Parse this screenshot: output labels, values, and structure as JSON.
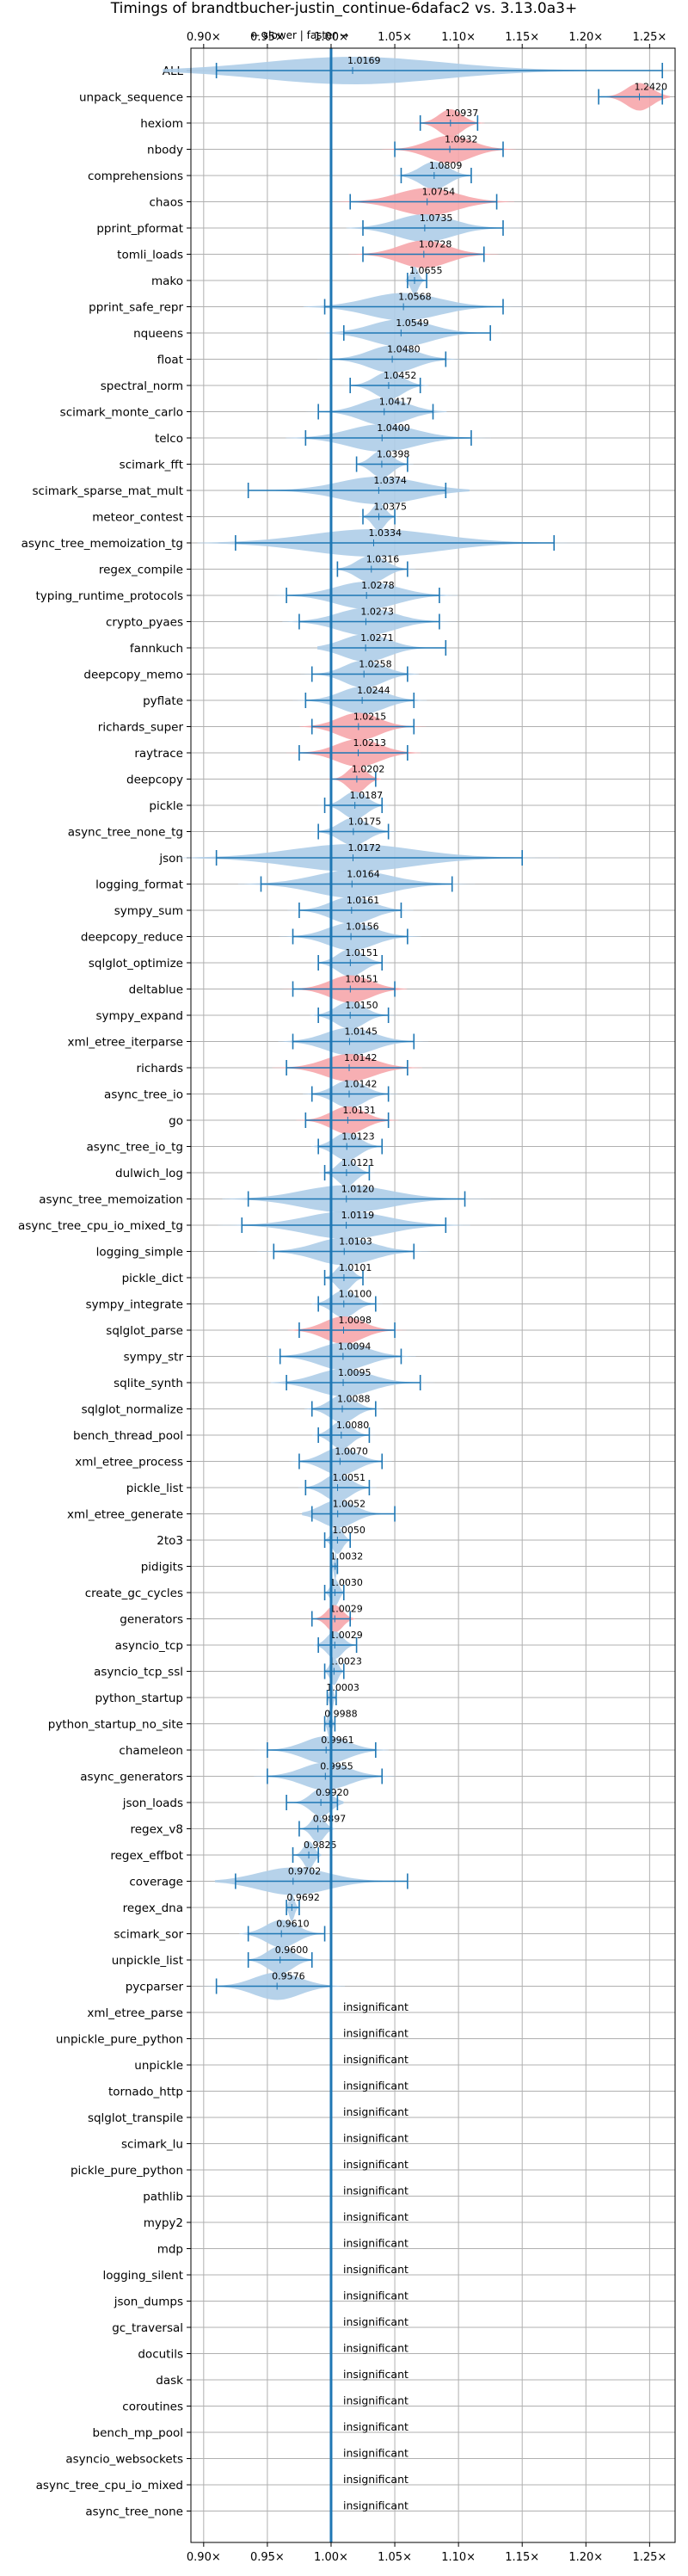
{
  "chart_data": {
    "type": "violin",
    "title": "Timings of brandtbucher-justin_continue-6dafac2 vs. 3.13.0a3+",
    "direction_hint": "← slower | faster →",
    "x_ticks": [
      "0.90×",
      "0.95×",
      "1.00×",
      "1.05×",
      "1.10×",
      "1.15×",
      "1.20×",
      "1.25×"
    ],
    "x_tick_values": [
      0.9,
      0.95,
      1.0,
      1.05,
      1.1,
      1.15,
      1.2,
      1.25
    ],
    "xlim": [
      0.89,
      1.27
    ],
    "reference": 1.0,
    "grid": true,
    "insignificant_label": "insignificant",
    "colors": {
      "faster": "#aecde8",
      "slower": "#f6a6ab",
      "line": "#1f77b4",
      "grid": "#b0b0b0"
    },
    "benchmarks": [
      {
        "name": "ALL",
        "value": 1.0169,
        "min": 0.91,
        "max": 1.26,
        "color": "blue",
        "sig": true
      },
      {
        "name": "unpack_sequence",
        "value": 1.242,
        "min": 1.21,
        "max": 1.26,
        "color": "red",
        "sig": true
      },
      {
        "name": "hexiom",
        "value": 1.0937,
        "min": 1.07,
        "max": 1.115,
        "color": "red",
        "sig": true
      },
      {
        "name": "nbody",
        "value": 1.0932,
        "min": 1.05,
        "max": 1.135,
        "color": "red",
        "sig": true
      },
      {
        "name": "comprehensions",
        "value": 1.0809,
        "min": 1.055,
        "max": 1.11,
        "color": "blue",
        "sig": true
      },
      {
        "name": "chaos",
        "value": 1.0754,
        "min": 1.015,
        "max": 1.13,
        "color": "red",
        "sig": true
      },
      {
        "name": "pprint_pformat",
        "value": 1.0735,
        "min": 1.025,
        "max": 1.135,
        "color": "blue",
        "sig": true
      },
      {
        "name": "tomli_loads",
        "value": 1.0728,
        "min": 1.025,
        "max": 1.12,
        "color": "red",
        "sig": true
      },
      {
        "name": "mako",
        "value": 1.0655,
        "min": 1.06,
        "max": 1.075,
        "color": "blue",
        "sig": true
      },
      {
        "name": "pprint_safe_repr",
        "value": 1.0568,
        "min": 0.995,
        "max": 1.135,
        "color": "blue",
        "sig": true
      },
      {
        "name": "nqueens",
        "value": 1.0549,
        "min": 1.01,
        "max": 1.125,
        "color": "blue",
        "sig": true
      },
      {
        "name": "float",
        "value": 1.048,
        "min": 1.0,
        "max": 1.09,
        "color": "blue",
        "sig": true
      },
      {
        "name": "spectral_norm",
        "value": 1.0452,
        "min": 1.015,
        "max": 1.07,
        "color": "blue",
        "sig": true
      },
      {
        "name": "scimark_monte_carlo",
        "value": 1.0417,
        "min": 0.99,
        "max": 1.08,
        "color": "blue",
        "sig": true
      },
      {
        "name": "telco",
        "value": 1.04,
        "min": 0.98,
        "max": 1.11,
        "color": "blue",
        "sig": true
      },
      {
        "name": "scimark_fft",
        "value": 1.0398,
        "min": 1.02,
        "max": 1.06,
        "color": "blue",
        "sig": true
      },
      {
        "name": "scimark_sparse_mat_mult",
        "value": 1.0374,
        "min": 0.935,
        "max": 1.09,
        "color": "blue",
        "sig": true
      },
      {
        "name": "meteor_contest",
        "value": 1.0375,
        "min": 1.025,
        "max": 1.05,
        "color": "blue",
        "sig": true
      },
      {
        "name": "async_tree_memoization_tg",
        "value": 1.0334,
        "min": 0.925,
        "max": 1.175,
        "color": "blue",
        "sig": true
      },
      {
        "name": "regex_compile",
        "value": 1.0316,
        "min": 1.005,
        "max": 1.06,
        "color": "blue",
        "sig": true
      },
      {
        "name": "typing_runtime_protocols",
        "value": 1.0278,
        "min": 0.965,
        "max": 1.085,
        "color": "blue",
        "sig": true
      },
      {
        "name": "crypto_pyaes",
        "value": 1.0273,
        "min": 0.975,
        "max": 1.085,
        "color": "blue",
        "sig": true
      },
      {
        "name": "fannkuch",
        "value": 1.0271,
        "min": 1.0,
        "max": 1.09,
        "color": "blue",
        "sig": true
      },
      {
        "name": "deepcopy_memo",
        "value": 1.0258,
        "min": 0.985,
        "max": 1.06,
        "color": "blue",
        "sig": true
      },
      {
        "name": "pyflate",
        "value": 1.0244,
        "min": 0.98,
        "max": 1.065,
        "color": "blue",
        "sig": true
      },
      {
        "name": "richards_super",
        "value": 1.0215,
        "min": 0.985,
        "max": 1.065,
        "color": "red",
        "sig": true
      },
      {
        "name": "raytrace",
        "value": 1.0213,
        "min": 0.975,
        "max": 1.06,
        "color": "red",
        "sig": true
      },
      {
        "name": "deepcopy",
        "value": 1.0202,
        "min": 1.0,
        "max": 1.035,
        "color": "red",
        "sig": true
      },
      {
        "name": "pickle",
        "value": 1.0187,
        "min": 0.995,
        "max": 1.04,
        "color": "blue",
        "sig": true
      },
      {
        "name": "async_tree_none_tg",
        "value": 1.0175,
        "min": 0.99,
        "max": 1.045,
        "color": "blue",
        "sig": true
      },
      {
        "name": "json",
        "value": 1.0172,
        "min": 0.91,
        "max": 1.15,
        "color": "blue",
        "sig": true
      },
      {
        "name": "logging_format",
        "value": 1.0164,
        "min": 0.945,
        "max": 1.095,
        "color": "blue",
        "sig": true
      },
      {
        "name": "sympy_sum",
        "value": 1.0161,
        "min": 0.975,
        "max": 1.055,
        "color": "blue",
        "sig": true
      },
      {
        "name": "deepcopy_reduce",
        "value": 1.0156,
        "min": 0.97,
        "max": 1.06,
        "color": "blue",
        "sig": true
      },
      {
        "name": "sqlglot_optimize",
        "value": 1.0151,
        "min": 0.99,
        "max": 1.04,
        "color": "blue",
        "sig": true
      },
      {
        "name": "deltablue",
        "value": 1.0151,
        "min": 0.97,
        "max": 1.05,
        "color": "red",
        "sig": true
      },
      {
        "name": "sympy_expand",
        "value": 1.015,
        "min": 0.99,
        "max": 1.045,
        "color": "blue",
        "sig": true
      },
      {
        "name": "xml_etree_iterparse",
        "value": 1.0145,
        "min": 0.97,
        "max": 1.065,
        "color": "blue",
        "sig": true
      },
      {
        "name": "richards",
        "value": 1.0142,
        "min": 0.965,
        "max": 1.06,
        "color": "red",
        "sig": true
      },
      {
        "name": "async_tree_io",
        "value": 1.0142,
        "min": 0.985,
        "max": 1.045,
        "color": "blue",
        "sig": true
      },
      {
        "name": "go",
        "value": 1.0131,
        "min": 0.98,
        "max": 1.045,
        "color": "red",
        "sig": true
      },
      {
        "name": "async_tree_io_tg",
        "value": 1.0123,
        "min": 0.99,
        "max": 1.04,
        "color": "blue",
        "sig": true
      },
      {
        "name": "dulwich_log",
        "value": 1.0121,
        "min": 0.995,
        "max": 1.03,
        "color": "blue",
        "sig": true
      },
      {
        "name": "async_tree_memoization",
        "value": 1.012,
        "min": 0.935,
        "max": 1.105,
        "color": "blue",
        "sig": true
      },
      {
        "name": "async_tree_cpu_io_mixed_tg",
        "value": 1.0119,
        "min": 0.93,
        "max": 1.09,
        "color": "blue",
        "sig": true
      },
      {
        "name": "logging_simple",
        "value": 1.0103,
        "min": 0.955,
        "max": 1.065,
        "color": "blue",
        "sig": true
      },
      {
        "name": "pickle_dict",
        "value": 1.0101,
        "min": 0.995,
        "max": 1.025,
        "color": "blue",
        "sig": true
      },
      {
        "name": "sympy_integrate",
        "value": 1.01,
        "min": 0.99,
        "max": 1.035,
        "color": "blue",
        "sig": true
      },
      {
        "name": "sqlglot_parse",
        "value": 1.0098,
        "min": 0.975,
        "max": 1.05,
        "color": "red",
        "sig": true
      },
      {
        "name": "sympy_str",
        "value": 1.0094,
        "min": 0.96,
        "max": 1.055,
        "color": "blue",
        "sig": true
      },
      {
        "name": "sqlite_synth",
        "value": 1.0095,
        "min": 0.965,
        "max": 1.07,
        "color": "blue",
        "sig": true
      },
      {
        "name": "sqlglot_normalize",
        "value": 1.0088,
        "min": 0.985,
        "max": 1.035,
        "color": "blue",
        "sig": true
      },
      {
        "name": "bench_thread_pool",
        "value": 1.008,
        "min": 0.99,
        "max": 1.03,
        "color": "blue",
        "sig": true
      },
      {
        "name": "xml_etree_process",
        "value": 1.007,
        "min": 0.975,
        "max": 1.04,
        "color": "blue",
        "sig": true
      },
      {
        "name": "pickle_list",
        "value": 1.0051,
        "min": 0.98,
        "max": 1.03,
        "color": "blue",
        "sig": true
      },
      {
        "name": "xml_etree_generate",
        "value": 1.0052,
        "min": 0.985,
        "max": 1.05,
        "color": "blue",
        "sig": true
      },
      {
        "name": "2to3",
        "value": 1.005,
        "min": 0.995,
        "max": 1.015,
        "color": "blue",
        "sig": true
      },
      {
        "name": "pidigits",
        "value": 1.0032,
        "min": 1.0,
        "max": 1.005,
        "color": "blue",
        "sig": true
      },
      {
        "name": "create_gc_cycles",
        "value": 1.003,
        "min": 0.995,
        "max": 1.01,
        "color": "blue",
        "sig": true
      },
      {
        "name": "generators",
        "value": 1.0029,
        "min": 0.985,
        "max": 1.015,
        "color": "red",
        "sig": true
      },
      {
        "name": "asyncio_tcp",
        "value": 1.0029,
        "min": 0.99,
        "max": 1.02,
        "color": "blue",
        "sig": true
      },
      {
        "name": "asyncio_tcp_ssl",
        "value": 1.0023,
        "min": 0.995,
        "max": 1.01,
        "color": "blue",
        "sig": true
      },
      {
        "name": "python_startup",
        "value": 1.0003,
        "min": 0.997,
        "max": 1.004,
        "color": "blue",
        "sig": true
      },
      {
        "name": "python_startup_no_site",
        "value": 0.9988,
        "min": 0.995,
        "max": 1.003,
        "color": "blue",
        "sig": true
      },
      {
        "name": "chameleon",
        "value": 0.9961,
        "min": 0.95,
        "max": 1.035,
        "color": "blue",
        "sig": true
      },
      {
        "name": "async_generators",
        "value": 0.9955,
        "min": 0.95,
        "max": 1.04,
        "color": "blue",
        "sig": true
      },
      {
        "name": "json_loads",
        "value": 0.992,
        "min": 0.965,
        "max": 1.005,
        "color": "blue",
        "sig": true
      },
      {
        "name": "regex_v8",
        "value": 0.9897,
        "min": 0.975,
        "max": 1.0,
        "color": "blue",
        "sig": true
      },
      {
        "name": "regex_effbot",
        "value": 0.9825,
        "min": 0.97,
        "max": 0.99,
        "color": "blue",
        "sig": true
      },
      {
        "name": "coverage",
        "value": 0.9702,
        "min": 0.925,
        "max": 1.06,
        "color": "blue",
        "sig": true
      },
      {
        "name": "regex_dna",
        "value": 0.9692,
        "min": 0.965,
        "max": 0.975,
        "color": "blue",
        "sig": true
      },
      {
        "name": "scimark_sor",
        "value": 0.961,
        "min": 0.935,
        "max": 0.995,
        "color": "blue",
        "sig": true
      },
      {
        "name": "unpickle_list",
        "value": 0.96,
        "min": 0.935,
        "max": 0.985,
        "color": "blue",
        "sig": true
      },
      {
        "name": "pycparser",
        "value": 0.9576,
        "min": 0.91,
        "max": 1.0,
        "color": "blue",
        "sig": true
      },
      {
        "name": "xml_etree_parse",
        "sig": false
      },
      {
        "name": "unpickle_pure_python",
        "sig": false
      },
      {
        "name": "unpickle",
        "sig": false
      },
      {
        "name": "tornado_http",
        "sig": false
      },
      {
        "name": "sqlglot_transpile",
        "sig": false
      },
      {
        "name": "scimark_lu",
        "sig": false
      },
      {
        "name": "pickle_pure_python",
        "sig": false
      },
      {
        "name": "pathlib",
        "sig": false
      },
      {
        "name": "mypy2",
        "sig": false
      },
      {
        "name": "mdp",
        "sig": false
      },
      {
        "name": "logging_silent",
        "sig": false
      },
      {
        "name": "json_dumps",
        "sig": false
      },
      {
        "name": "gc_traversal",
        "sig": false
      },
      {
        "name": "docutils",
        "sig": false
      },
      {
        "name": "dask",
        "sig": false
      },
      {
        "name": "coroutines",
        "sig": false
      },
      {
        "name": "bench_mp_pool",
        "sig": false
      },
      {
        "name": "asyncio_websockets",
        "sig": false
      },
      {
        "name": "async_tree_cpu_io_mixed",
        "sig": false
      },
      {
        "name": "async_tree_none",
        "sig": false
      }
    ]
  }
}
